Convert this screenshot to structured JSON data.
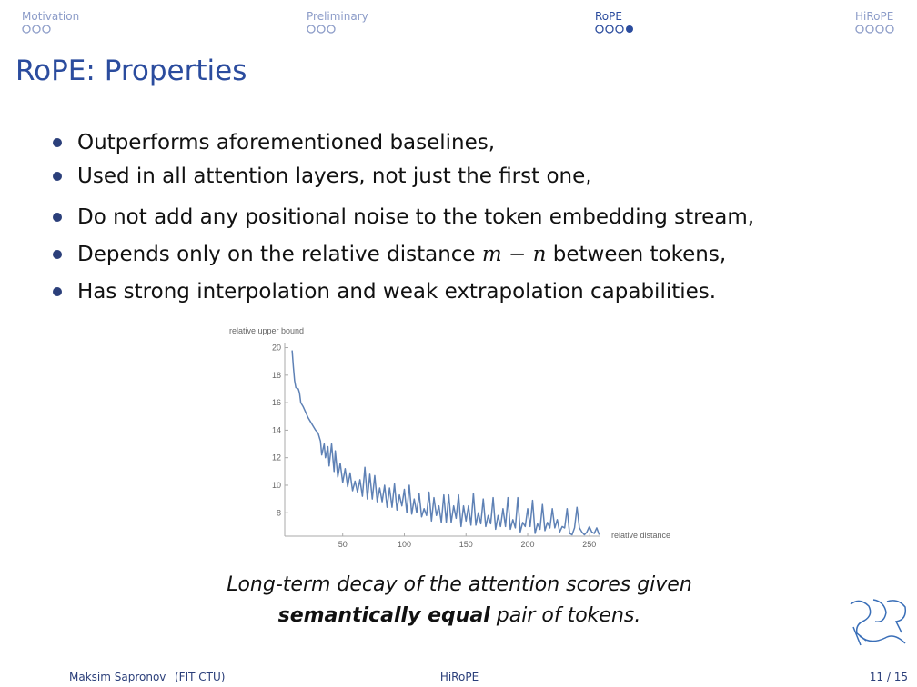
{
  "nav": [
    "Motivation",
    "Preliminary",
    "RoPE",
    "HiRoPE"
  ],
  "title": "RoPE: Properties",
  "bullets": [
    [
      "Outperforms aforementioned baselines,"
    ],
    [
      "Used in all attention layers, not just the first one,"
    ],
    [
      "Do not add any positional noise to the token embedding stream,"
    ],
    [
      "Depends only on the relative distance ",
      "m − n",
      " between tokens,"
    ],
    [
      "Has strong interpolation and weak extrapolation capabilities."
    ]
  ],
  "chart_data": {
    "type": "line",
    "y_label": "relative upper bound",
    "x_label": "relative distance",
    "color": "#5e81b5",
    "xlim": [
      3,
      259
    ],
    "xticks": [
      50,
      100,
      150,
      200,
      250
    ],
    "ylim": [
      6.3,
      20.3
    ],
    "yticks": [
      8,
      10,
      12,
      14,
      16,
      18,
      20
    ],
    "x": [
      9,
      10,
      11,
      12,
      14,
      15,
      16,
      18,
      20,
      22,
      24,
      26,
      28,
      30,
      32,
      33,
      35,
      36,
      38,
      39,
      41,
      43,
      44,
      46,
      48,
      50,
      52,
      54,
      56,
      58,
      60,
      62,
      64,
      66,
      68,
      70,
      72,
      74,
      76,
      78,
      80,
      82,
      84,
      86,
      88,
      90,
      92,
      94,
      96,
      98,
      100,
      102,
      104,
      106,
      108,
      110,
      112,
      114,
      116,
      118,
      120,
      122,
      124,
      126,
      128,
      130,
      132,
      134,
      136,
      138,
      140,
      142,
      144,
      146,
      148,
      150,
      152,
      154,
      156,
      158,
      160,
      162,
      164,
      166,
      168,
      170,
      172,
      174,
      176,
      178,
      180,
      182,
      184,
      186,
      188,
      190,
      192,
      194,
      196,
      198,
      200,
      202,
      204,
      206,
      208,
      210,
      212,
      214,
      216,
      218,
      220,
      222,
      224,
      226,
      228,
      230,
      232,
      234,
      236,
      238,
      240,
      242,
      244,
      246,
      248,
      250,
      252,
      254,
      256,
      258
    ],
    "values": [
      19.8,
      18.6,
      17.6,
      17.1,
      17.0,
      16.7,
      16.0,
      15.7,
      15.3,
      14.9,
      14.6,
      14.3,
      14.0,
      13.8,
      13.2,
      12.2,
      13.0,
      12.0,
      12.8,
      11.4,
      13.0,
      11.0,
      12.5,
      10.6,
      11.6,
      10.2,
      11.2,
      9.9,
      10.9,
      9.6,
      10.3,
      9.5,
      10.4,
      9.2,
      11.3,
      9.0,
      10.8,
      9.0,
      10.7,
      8.8,
      9.8,
      8.8,
      10.0,
      8.4,
      9.8,
      8.4,
      10.1,
      8.2,
      9.3,
      8.5,
      9.7,
      8.0,
      10.0,
      7.9,
      9.0,
      8.0,
      9.4,
      7.7,
      8.3,
      7.8,
      9.5,
      7.4,
      9.1,
      7.8,
      8.5,
      7.3,
      9.3,
      7.3,
      9.3,
      7.3,
      8.5,
      7.6,
      9.3,
      7.0,
      8.5,
      7.4,
      8.5,
      7.1,
      9.4,
      7.1,
      8.0,
      7.2,
      9.0,
      7.0,
      7.8,
      7.2,
      9.1,
      6.8,
      7.8,
      7.0,
      8.3,
      7.0,
      9.1,
      6.8,
      7.5,
      6.9,
      9.1,
      6.6,
      7.3,
      7.0,
      8.3,
      7.0,
      8.9,
      6.5,
      7.2,
      6.8,
      8.6,
      6.7,
      7.3,
      6.9,
      8.3,
      6.9,
      7.5,
      6.6,
      7.0,
      6.9,
      8.3,
      6.5,
      6.4,
      6.9,
      8.4,
      6.9,
      6.6,
      6.4,
      6.6,
      7.0,
      6.6,
      6.5,
      6.9,
      6.4
    ]
  },
  "caption": {
    "line1": "Long-term decay of the attention scores given",
    "bold": "semantically equal",
    "rest": " pair of tokens."
  },
  "footer": {
    "author": "Maksim Sapronov",
    "institute": "(FIT CTU)",
    "short_title": "HiRoPE",
    "page": "11 / 15"
  }
}
